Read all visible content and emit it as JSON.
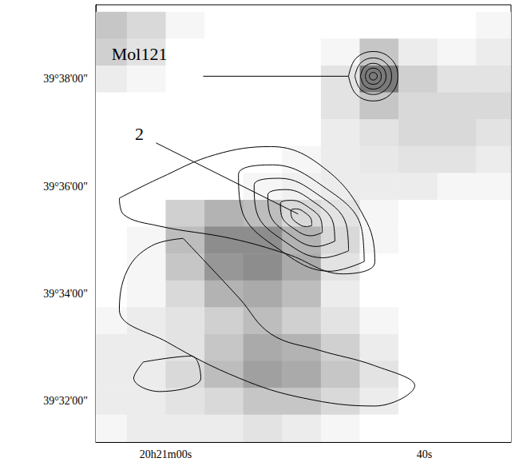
{
  "chart_data": {
    "type": "contour",
    "xlim": [
      1265.4,
      1233.3
    ],
    "ylim": [
      31.24,
      39.38
    ],
    "xticks": [
      {
        "value": 1260,
        "label": "20h21m00s"
      },
      {
        "value": 1240,
        "label": "40s"
      }
    ],
    "yticks": [
      {
        "value": 32,
        "label": "39°32'00\""
      },
      {
        "value": 34,
        "label": "39°34'00\""
      },
      {
        "value": 36,
        "label": "39°36'00\""
      },
      {
        "value": 38,
        "label": "39°38'00\""
      }
    ],
    "image": {
      "x": [
        1264.5,
        1261.5,
        1258.5,
        1255.5,
        1252.5,
        1249.5,
        1246.5,
        1243.5,
        1240.5,
        1237.5,
        1234.5
      ],
      "y": [
        39.0,
        38.5,
        38.0,
        37.5,
        37.0,
        36.5,
        36.0,
        35.5,
        35.0,
        34.5,
        34.0,
        33.5,
        33.0,
        32.5,
        32.0,
        31.5
      ],
      "values": [
        [
          0.3,
          0.2,
          0.05,
          0,
          0,
          0,
          0,
          0,
          0,
          0,
          0.05
        ],
        [
          0.25,
          0.15,
          0,
          0,
          0,
          0,
          0.05,
          0.3,
          0.1,
          0.05,
          0.1
        ],
        [
          0.1,
          0.05,
          0,
          0,
          0,
          0,
          0.15,
          0.7,
          0.25,
          0.15,
          0.15
        ],
        [
          0,
          0,
          0,
          0,
          0,
          0,
          0.15,
          0.3,
          0.2,
          0.2,
          0.2
        ],
        [
          0,
          0,
          0,
          0,
          0,
          0,
          0.1,
          0.15,
          0.2,
          0.2,
          0.15
        ],
        [
          0,
          0,
          0,
          0,
          0,
          0.05,
          0.1,
          0.12,
          0.15,
          0.15,
          0.1
        ],
        [
          0,
          0,
          0,
          0,
          0.05,
          0.08,
          0.1,
          0.1,
          0.1,
          0.05,
          0.05
        ],
        [
          0,
          0,
          0.25,
          0.4,
          0.35,
          0.2,
          0.15,
          0.05,
          0,
          0,
          0
        ],
        [
          0,
          0.05,
          0.35,
          0.6,
          0.6,
          0.4,
          0.2,
          0.05,
          0,
          0,
          0
        ],
        [
          0,
          0.05,
          0.3,
          0.55,
          0.6,
          0.45,
          0.15,
          0,
          0,
          0,
          0
        ],
        [
          0,
          0.05,
          0.2,
          0.4,
          0.45,
          0.35,
          0.1,
          0,
          0,
          0,
          0
        ],
        [
          0.05,
          0.1,
          0.15,
          0.25,
          0.35,
          0.25,
          0.15,
          0.05,
          0,
          0,
          0
        ],
        [
          0.1,
          0.1,
          0.15,
          0.3,
          0.45,
          0.4,
          0.25,
          0.1,
          0,
          0,
          0
        ],
        [
          0.1,
          0.1,
          0.2,
          0.35,
          0.5,
          0.45,
          0.3,
          0.15,
          0,
          0,
          0
        ],
        [
          0.1,
          0.1,
          0.15,
          0.2,
          0.3,
          0.3,
          0.2,
          0.1,
          0,
          0,
          0
        ],
        [
          0.05,
          0.1,
          0.1,
          0.1,
          0.15,
          0.1,
          0.05,
          0,
          0,
          0,
          0
        ]
      ],
      "value_range": [
        0,
        1
      ]
    },
    "contours": [
      {
        "values": [
          [
            1248.7,
            35.27
          ],
          [
            1249.14,
            35.25
          ],
          [
            1249.79,
            35.31
          ],
          [
            1250.28,
            35.44
          ],
          [
            1250.32,
            35.55
          ],
          [
            1249.88,
            35.58
          ],
          [
            1249.23,
            35.51
          ],
          [
            1248.74,
            35.38
          ],
          [
            1248.7,
            35.27
          ]
        ]
      },
      {
        "values": [
          [
            1247.89,
            35.14
          ],
          [
            1248.77,
            35.08
          ],
          [
            1250.07,
            35.21
          ],
          [
            1251.05,
            35.46
          ],
          [
            1251.13,
            35.68
          ],
          [
            1250.25,
            35.74
          ],
          [
            1248.95,
            35.61
          ],
          [
            1247.97,
            35.36
          ],
          [
            1247.89,
            35.14
          ]
        ]
      },
      {
        "values": [
          [
            1246.92,
            34.98
          ],
          [
            1248.33,
            34.88
          ],
          [
            1250.41,
            35.1
          ],
          [
            1251.97,
            35.5
          ],
          [
            1252.1,
            35.84
          ],
          [
            1250.69,
            35.94
          ],
          [
            1248.61,
            35.72
          ],
          [
            1247.05,
            35.32
          ],
          [
            1246.92,
            34.98
          ]
        ]
      },
      {
        "values": [
          [
            1245.86,
            34.8
          ],
          [
            1247.84,
            34.67
          ],
          [
            1250.77,
            34.97
          ],
          [
            1252.98,
            35.53
          ],
          [
            1253.16,
            36.02
          ],
          [
            1251.18,
            36.15
          ],
          [
            1248.25,
            35.85
          ],
          [
            1246.04,
            35.29
          ],
          [
            1245.86,
            34.8
          ]
        ]
      },
      {
        "values": [
          [
            1244.65,
            34.6
          ],
          [
            1247.29,
            34.42
          ],
          [
            1251.19,
            34.82
          ],
          [
            1254.13,
            35.57
          ],
          [
            1254.37,
            36.22
          ],
          [
            1251.73,
            36.4
          ],
          [
            1247.83,
            36.0
          ],
          [
            1244.89,
            35.25
          ],
          [
            1244.65,
            34.6
          ]
        ]
      },
      {
        "values": [
          [
            1263.58,
            35.78
          ],
          [
            1260.49,
            36.15
          ],
          [
            1256.17,
            36.59
          ],
          [
            1251.85,
            36.74
          ],
          [
            1247.53,
            36.3
          ],
          [
            1244.44,
            35.33
          ],
          [
            1243.83,
            34.59
          ],
          [
            1246.3,
            34.37
          ],
          [
            1250.62,
            34.74
          ],
          [
            1254.94,
            35.03
          ],
          [
            1260.49,
            35.26
          ],
          [
            1263.27,
            35.48
          ],
          [
            1263.58,
            35.78
          ]
        ]
      },
      {
        "values": [
          [
            1258.64,
            35.03
          ],
          [
            1254.32,
            33.92
          ],
          [
            1251.85,
            33.25
          ],
          [
            1248.15,
            32.95
          ],
          [
            1243.83,
            32.66
          ],
          [
            1240.74,
            32.29
          ],
          [
            1243.83,
            31.91
          ],
          [
            1249.38,
            32.06
          ],
          [
            1254.32,
            32.43
          ],
          [
            1259.88,
            33.1
          ],
          [
            1263.58,
            33.7
          ],
          [
            1262.96,
            34.44
          ],
          [
            1261.11,
            34.89
          ],
          [
            1258.64,
            35.03
          ]
        ]
      },
      {
        "values": [
          [
            1261.73,
            32.73
          ],
          [
            1258.02,
            32.84
          ],
          [
            1257.28,
            32.43
          ],
          [
            1260.49,
            32.18
          ],
          [
            1262.47,
            32.43
          ],
          [
            1261.73,
            32.73
          ]
        ]
      },
      {
        "values": [
          [
            1244.26,
            38.05
          ],
          [
            1244.17,
            38.1
          ],
          [
            1243.95,
            38.12
          ],
          [
            1243.73,
            38.1
          ],
          [
            1243.64,
            38.05
          ],
          [
            1243.73,
            38.0
          ],
          [
            1243.95,
            37.98
          ],
          [
            1244.17,
            38.0
          ],
          [
            1244.26,
            38.05
          ]
        ]
      },
      {
        "values": [
          [
            1244.57,
            38.05
          ],
          [
            1244.39,
            38.16
          ],
          [
            1243.95,
            38.2
          ],
          [
            1243.51,
            38.16
          ],
          [
            1243.33,
            38.05
          ],
          [
            1243.51,
            37.94
          ],
          [
            1243.95,
            37.9
          ],
          [
            1244.39,
            37.94
          ],
          [
            1244.57,
            38.05
          ]
        ]
      },
      {
        "values": [
          [
            1244.94,
            38.05
          ],
          [
            1244.65,
            38.22
          ],
          [
            1243.95,
            38.29
          ],
          [
            1243.25,
            38.22
          ],
          [
            1242.96,
            38.05
          ],
          [
            1243.25,
            37.88
          ],
          [
            1243.95,
            37.81
          ],
          [
            1244.65,
            37.88
          ],
          [
            1244.94,
            38.05
          ]
        ]
      },
      {
        "values": [
          [
            1245.37,
            38.05
          ],
          [
            1244.95,
            38.29
          ],
          [
            1243.95,
            38.39
          ],
          [
            1242.95,
            38.29
          ],
          [
            1242.53,
            38.05
          ],
          [
            1242.95,
            37.81
          ],
          [
            1243.95,
            37.71
          ],
          [
            1244.95,
            37.81
          ],
          [
            1245.37,
            38.05
          ]
        ]
      },
      {
        "values": [
          [
            1245.86,
            38.05
          ],
          [
            1245.3,
            38.38
          ],
          [
            1243.95,
            38.51
          ],
          [
            1242.6,
            38.38
          ],
          [
            1242.04,
            38.05
          ],
          [
            1242.6,
            37.72
          ],
          [
            1243.95,
            37.59
          ],
          [
            1245.3,
            37.72
          ],
          [
            1245.86,
            38.05
          ]
        ]
      }
    ],
    "annotations": [
      {
        "text": "Mol121",
        "x": 1243.95,
        "y": 38.05
      },
      {
        "text": "2",
        "x": 1249.51,
        "y": 35.41
      }
    ]
  }
}
